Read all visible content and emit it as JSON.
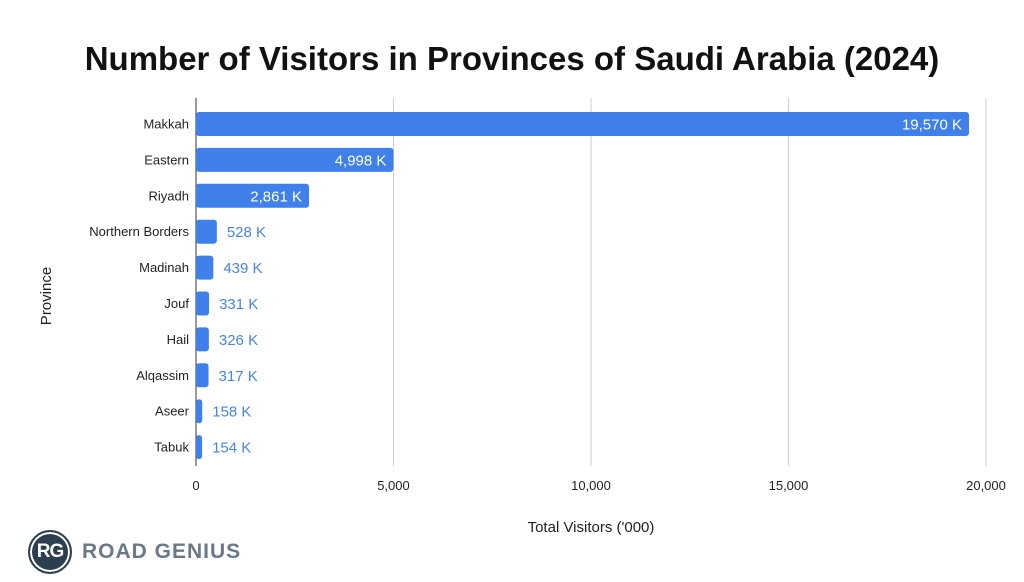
{
  "chart_data": {
    "type": "bar",
    "orientation": "horizontal",
    "title": "Number of Visitors in Provinces of Saudi Arabia (2024)",
    "xlabel": "Total Visitors ('000)",
    "ylabel": "Province",
    "categories": [
      "Makkah",
      "Eastern",
      "Riyadh",
      "Northern Borders",
      "Madinah",
      "Jouf",
      "Hail",
      "Alqassim",
      "Aseer",
      "Tabuk"
    ],
    "values": [
      19570,
      4998,
      2861,
      528,
      439,
      331,
      326,
      317,
      158,
      154
    ],
    "data_labels": [
      "19,570 K",
      "4,998 K",
      "2,861 K",
      "528 K",
      "439 K",
      "331 K",
      "326 K",
      "317 K",
      "158 K",
      "154 K"
    ],
    "xlim": [
      0,
      20000
    ],
    "xticks": [
      0,
      5000,
      10000,
      15000,
      20000
    ],
    "xtick_labels": [
      "0",
      "5,000",
      "10,000",
      "15,000",
      "20,000"
    ],
    "grid": "vertical",
    "bar_color": "#3f80ea",
    "label_color_outside": "#4a86d8"
  },
  "logo": {
    "initials": "RG",
    "text": "ROAD GENIUS"
  }
}
